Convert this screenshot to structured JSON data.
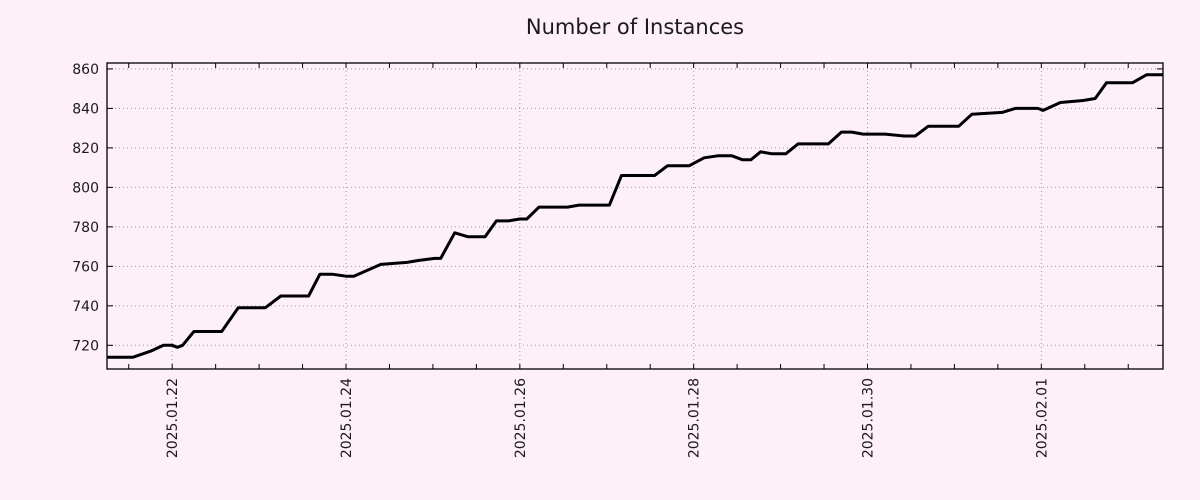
{
  "chart_data": {
    "type": "line",
    "title": "Number of Instances",
    "xlabel": "",
    "ylabel": "",
    "legend": "none",
    "grid": "dotted",
    "x_unit": "days since 2025-01-21 00:00",
    "x_range": [
      0.25,
      12.4
    ],
    "y_range": [
      708,
      863
    ],
    "y_ticks": [
      720,
      740,
      760,
      780,
      800,
      820,
      840,
      860
    ],
    "x_major_ticks": [
      {
        "pos": 1,
        "label": "2025.01.22"
      },
      {
        "pos": 3,
        "label": "2025.01.24"
      },
      {
        "pos": 5,
        "label": "2025.01.26"
      },
      {
        "pos": 7,
        "label": "2025.01.28"
      },
      {
        "pos": 9,
        "label": "2025.01.30"
      },
      {
        "pos": 11,
        "label": "2025.02.01"
      }
    ],
    "x_minor_tick_start": 0.5,
    "x_minor_tick_step": 0.5,
    "x_minor_tick_end": 12.0,
    "series": [
      {
        "name": "instances",
        "points": [
          [
            0.25,
            714
          ],
          [
            0.55,
            714
          ],
          [
            0.75,
            717
          ],
          [
            0.9,
            720
          ],
          [
            1.0,
            720
          ],
          [
            1.06,
            719
          ],
          [
            1.12,
            720
          ],
          [
            1.25,
            727
          ],
          [
            1.57,
            727
          ],
          [
            1.76,
            739
          ],
          [
            2.07,
            739
          ],
          [
            2.25,
            745
          ],
          [
            2.57,
            745
          ],
          [
            2.7,
            756
          ],
          [
            2.84,
            756
          ],
          [
            3.0,
            755
          ],
          [
            3.09,
            755
          ],
          [
            3.4,
            761
          ],
          [
            3.7,
            762
          ],
          [
            3.84,
            763
          ],
          [
            4.02,
            764
          ],
          [
            4.09,
            764
          ],
          [
            4.25,
            777
          ],
          [
            4.4,
            775
          ],
          [
            4.6,
            775
          ],
          [
            4.73,
            783
          ],
          [
            4.87,
            783
          ],
          [
            5.0,
            784
          ],
          [
            5.08,
            784
          ],
          [
            5.22,
            790
          ],
          [
            5.55,
            790
          ],
          [
            5.68,
            791
          ],
          [
            6.03,
            791
          ],
          [
            6.17,
            806
          ],
          [
            6.55,
            806
          ],
          [
            6.7,
            811
          ],
          [
            6.95,
            811
          ],
          [
            7.12,
            815
          ],
          [
            7.28,
            816
          ],
          [
            7.44,
            816
          ],
          [
            7.56,
            814
          ],
          [
            7.66,
            814
          ],
          [
            7.77,
            818
          ],
          [
            7.9,
            817
          ],
          [
            8.06,
            817
          ],
          [
            8.2,
            822
          ],
          [
            8.55,
            822
          ],
          [
            8.7,
            828
          ],
          [
            8.82,
            828
          ],
          [
            8.95,
            827
          ],
          [
            9.2,
            827
          ],
          [
            9.42,
            826
          ],
          [
            9.55,
            826
          ],
          [
            9.7,
            831
          ],
          [
            10.05,
            831
          ],
          [
            10.2,
            837
          ],
          [
            10.55,
            838
          ],
          [
            10.7,
            840
          ],
          [
            10.96,
            840
          ],
          [
            11.02,
            839
          ],
          [
            11.22,
            843
          ],
          [
            11.48,
            844
          ],
          [
            11.62,
            845
          ],
          [
            11.75,
            853
          ],
          [
            12.05,
            853
          ],
          [
            12.21,
            857
          ],
          [
            12.4,
            857
          ]
        ]
      }
    ],
    "colors": {
      "background": "#fdf0f8",
      "line": "#000000",
      "grid": "#9a9a9a",
      "axis": "#000000",
      "text": "#1a1a1a"
    }
  }
}
